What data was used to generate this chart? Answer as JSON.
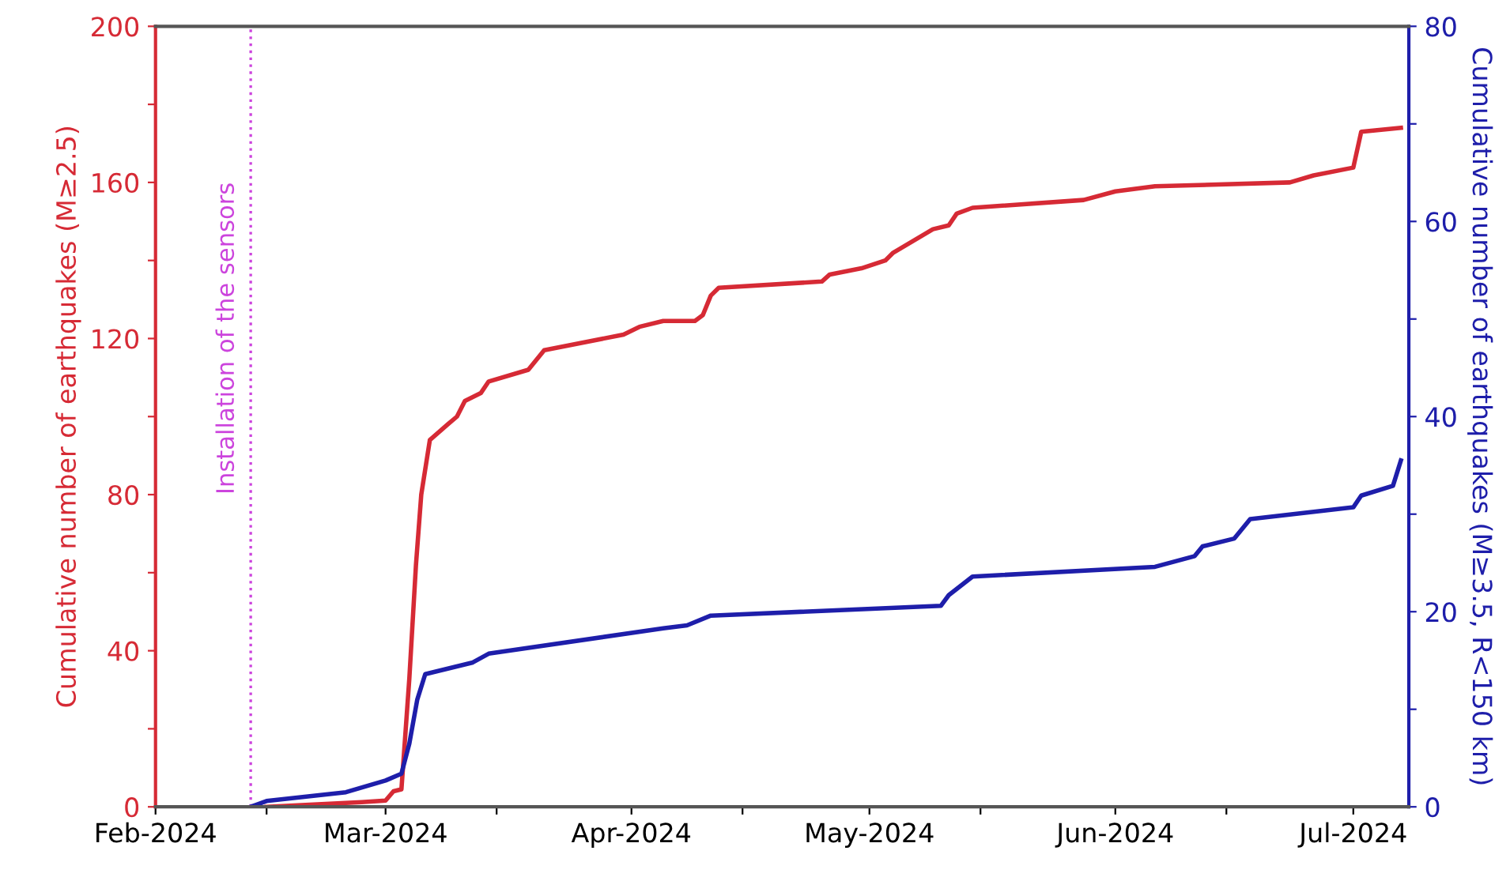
{
  "chart_data": {
    "type": "line",
    "ylabel": "Cumulative number of earthquakes (M≥2.5)",
    "y2label": "Cumulative number of earthquakes (M≥3.5, R<150 km)",
    "xlim": [
      "2024-02-01",
      "2024-07-08"
    ],
    "xticks": [
      {
        "value": "2024-02-01",
        "label": "Feb-2024"
      },
      {
        "value": "2024-02-15",
        "label": null
      },
      {
        "value": "2024-03-01",
        "label": "Mar-2024"
      },
      {
        "value": "2024-03-15",
        "label": null
      },
      {
        "value": "2024-04-01",
        "label": "Apr-2024"
      },
      {
        "value": "2024-04-15",
        "label": null
      },
      {
        "value": "2024-05-01",
        "label": "May-2024"
      },
      {
        "value": "2024-05-15",
        "label": null
      },
      {
        "value": "2024-06-01",
        "label": "Jun-2024"
      },
      {
        "value": "2024-06-15",
        "label": null
      },
      {
        "value": "2024-07-01",
        "label": "Jul-2024"
      }
    ],
    "ylim": [
      0,
      200
    ],
    "yticks": [
      0,
      {
        "value": 20,
        "label": null
      },
      40,
      {
        "value": 60,
        "label": null
      },
      80,
      {
        "value": 100,
        "label": null
      },
      120,
      {
        "value": 140,
        "label": null
      },
      160,
      {
        "value": 180,
        "label": null
      },
      200
    ],
    "y2lim": [
      0,
      80
    ],
    "y2ticks": [
      0,
      {
        "value": 10,
        "label": null
      },
      20,
      {
        "value": 30,
        "label": null
      },
      40,
      {
        "value": 50,
        "label": null
      },
      60,
      {
        "value": 70,
        "label": null
      },
      80
    ],
    "grid": false,
    "legend": false,
    "marker": "none",
    "line_style": "solid",
    "ref_lines": [
      {
        "axis": "x",
        "value": "2024-02-13",
        "label": "Installation of the sensors",
        "color": "#cc44dd",
        "line_style": "dotted"
      }
    ],
    "series": [
      {
        "color": "#d62a35",
        "x": [
          "2024-02-15",
          "2024-02-27",
          "2024-03-01",
          "2024-03-02",
          "2024-03-03",
          "2024-03-04",
          "2024-03-04T20:00",
          "2024-03-05T12:00",
          "2024-03-06T14:00",
          "2024-03-08T20:00",
          "2024-03-10",
          "2024-03-11",
          "2024-03-13",
          "2024-03-14",
          "2024-03-19",
          "2024-03-21",
          "2024-03-31",
          "2024-04-02",
          "2024-04-05",
          "2024-04-09",
          "2024-04-10",
          "2024-04-11",
          "2024-04-12",
          "2024-04-25",
          "2024-04-26",
          "2024-04-30",
          "2024-05-03",
          "2024-05-04",
          "2024-05-09",
          "2024-05-11",
          "2024-05-12",
          "2024-05-14",
          "2024-05-28",
          "2024-06-01",
          "2024-06-06",
          "2024-06-23",
          "2024-06-26",
          "2024-07-01",
          "2024-07-02",
          "2024-07-07"
        ],
        "values": [
          0,
          1.2,
          1.6,
          4,
          4.5,
          33,
          62,
          80,
          94,
          98,
          100,
          104,
          106,
          109,
          112,
          117,
          121,
          123,
          124.5,
          124.5,
          126,
          131,
          133,
          134.6,
          136.4,
          138,
          140,
          142,
          148,
          149,
          152,
          153.5,
          155.5,
          157.7,
          159,
          160,
          161.8,
          163.8,
          173,
          174
        ]
      },
      {
        "color": "#1e1eaa",
        "axis": "y2",
        "x": [
          "2024-02-13",
          "2024-02-15",
          "2024-02-25",
          "2024-03-01",
          "2024-03-03",
          "2024-03-04",
          "2024-03-05",
          "2024-03-06",
          "2024-03-12",
          "2024-03-14",
          "2024-04-05",
          "2024-04-08",
          "2024-04-11",
          "2024-05-10",
          "2024-05-11",
          "2024-05-14",
          "2024-06-06",
          "2024-06-11",
          "2024-06-12",
          "2024-06-16",
          "2024-06-18",
          "2024-07-01",
          "2024-07-02",
          "2024-07-06",
          "2024-07-07"
        ],
        "values": [
          0,
          0.6,
          1.5,
          2.7,
          3.4,
          6.5,
          11,
          13.6,
          14.8,
          15.7,
          18.3,
          18.6,
          19.6,
          20.6,
          21.7,
          23.6,
          24.6,
          25.7,
          26.7,
          27.5,
          29.5,
          30.7,
          31.9,
          32.9,
          35.5
        ]
      }
    ]
  }
}
